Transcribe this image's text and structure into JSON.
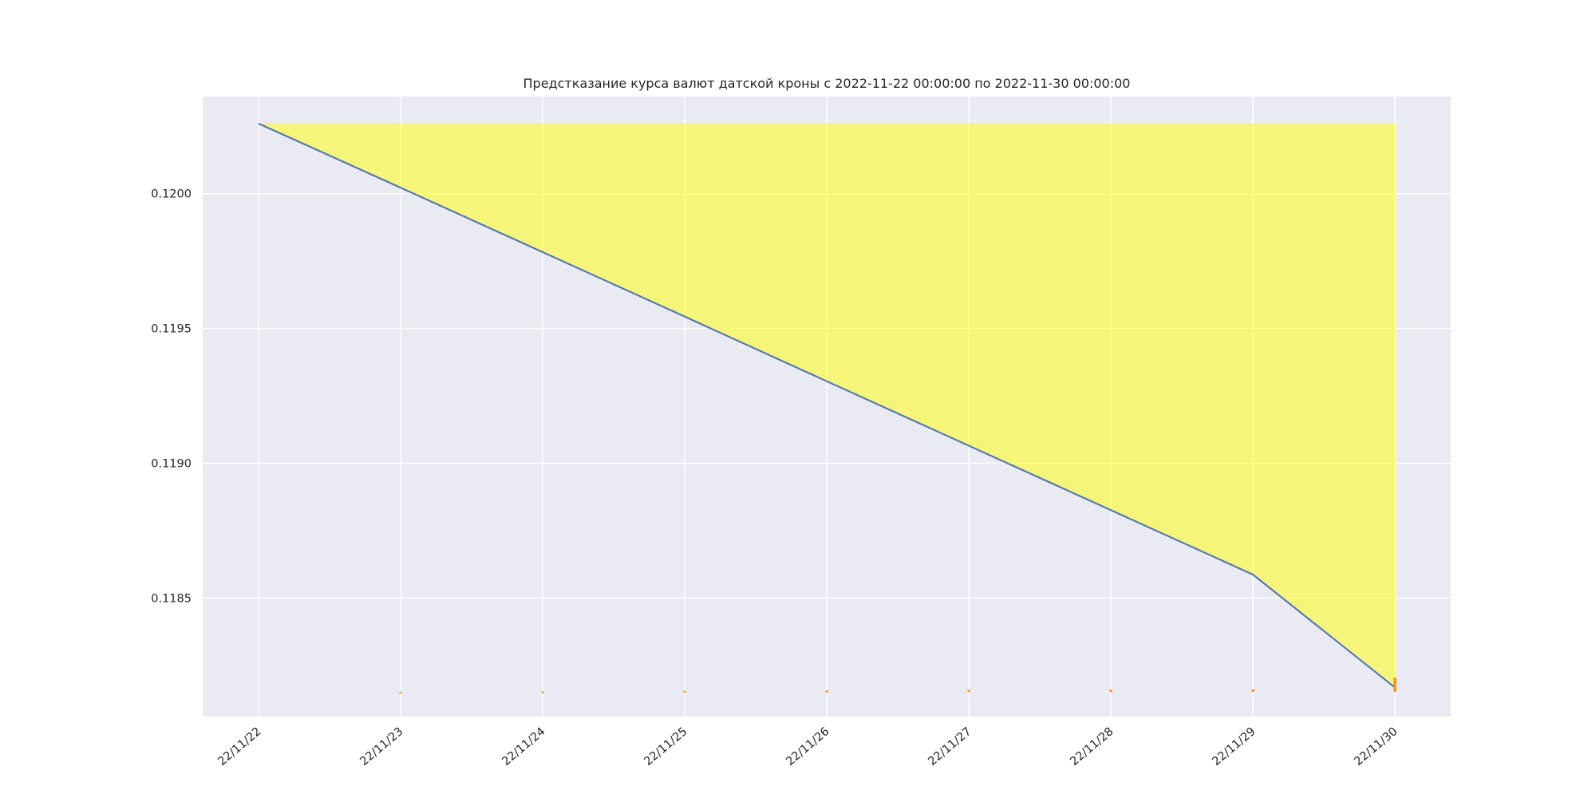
{
  "chart_data": {
    "type": "line",
    "title": "Предстказание курса валют датской кроны с 2022-11-22 00:00:00 по 2022-11-30 00:00:00",
    "xlabel": "",
    "ylabel": "",
    "x": [
      "2022-11-22",
      "2022-11-23",
      "2022-11-24",
      "2022-11-25",
      "2022-11-26",
      "2022-11-27",
      "2022-11-28",
      "2022-11-29",
      "2022-11-30"
    ],
    "x_tick_labels": [
      "22/11/22",
      "22/11/23",
      "22/11/24",
      "22/11/25",
      "22/11/26",
      "22/11/27",
      "22/11/28",
      "22/11/29",
      "22/11/30"
    ],
    "y_ticks": [
      0.1185,
      0.119,
      0.1195,
      0.12
    ],
    "y_tick_labels": [
      "0.1185",
      "0.1190",
      "0.1195",
      "0.1200"
    ],
    "ylim": [
      0.11806,
      0.12036
    ],
    "grid": true,
    "colors": {
      "background": "#eaeaf2",
      "grid": "#ffffff",
      "line": "#4c72b0",
      "band": "#ffff00",
      "error": "#ff8c00"
    },
    "series": [
      {
        "values": [
          0.12026,
          0.120022,
          0.119783,
          0.119544,
          0.119304,
          0.119065,
          0.118826,
          0.118587,
          0.118168
        ]
      }
    ],
    "band": {
      "upper": [
        0.12026,
        0.12026,
        0.12026,
        0.12026,
        0.12026,
        0.12026,
        0.12026,
        0.12026,
        0.12026
      ],
      "lower": [
        0.12026,
        0.120022,
        0.119783,
        0.119544,
        0.119304,
        0.119065,
        0.118826,
        0.118587,
        0.118168
      ]
    },
    "error_bars": [
      {
        "x": "2022-11-23",
        "low": 0.118149,
        "high": 0.118152
      },
      {
        "x": "2022-11-24",
        "low": 0.118149,
        "high": 0.118153
      },
      {
        "x": "2022-11-25",
        "low": 0.11815,
        "high": 0.118156
      },
      {
        "x": "2022-11-26",
        "low": 0.11815,
        "high": 0.118157
      },
      {
        "x": "2022-11-27",
        "low": 0.118151,
        "high": 0.118159
      },
      {
        "x": "2022-11-28",
        "low": 0.118151,
        "high": 0.11816
      },
      {
        "x": "2022-11-29",
        "low": 0.118152,
        "high": 0.118161
      },
      {
        "x": "2022-11-30",
        "low": 0.118152,
        "high": 0.118205
      }
    ]
  }
}
